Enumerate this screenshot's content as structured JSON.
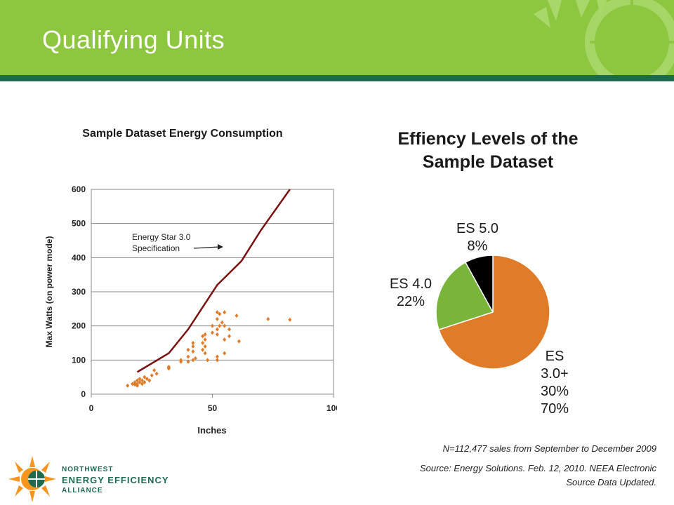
{
  "slide": {
    "title": "Qualifying Units"
  },
  "colors": {
    "header_green": "#8dc63f",
    "header_stripe": "#1d6b4f",
    "scatter_points": "#e07b28",
    "spec_line": "#7b1010",
    "pie_es3": "#e07b28",
    "pie_es4": "#79b43b",
    "pie_es5": "#000000"
  },
  "chart_data": [
    {
      "type": "scatter",
      "title": "Sample Dataset Energy Consumption",
      "xlabel": "Inches",
      "ylabel": "Max Watts (on power mode)",
      "xlim": [
        0,
        100
      ],
      "ylim": [
        0,
        600
      ],
      "xticks": [
        "0",
        "50",
        "100"
      ],
      "yticks": [
        "0",
        "100",
        "200",
        "300",
        "400",
        "500",
        "600"
      ],
      "grid": true,
      "annotation": {
        "line1": "Energy Star 3.0",
        "line2": "Specification"
      },
      "series": [
        {
          "name": "Energy Star 3.0 Specification",
          "kind": "line",
          "x": [
            19,
            32,
            40,
            52,
            62,
            70,
            82
          ],
          "y": [
            65,
            120,
            190,
            320,
            390,
            480,
            600
          ]
        },
        {
          "kind": "scatter",
          "x": [
            15,
            17,
            18,
            18,
            19,
            19,
            19,
            20,
            20,
            21,
            21,
            22,
            22,
            23,
            24,
            25,
            26,
            27,
            32,
            32,
            32,
            37,
            37,
            40,
            40,
            40,
            42,
            42,
            42,
            42,
            43,
            46,
            46,
            46,
            47,
            47,
            47,
            47,
            48,
            50,
            50,
            52,
            52,
            52,
            52,
            52,
            52,
            53,
            53,
            54,
            55,
            55,
            55,
            55,
            57,
            57,
            60,
            61,
            73,
            82
          ],
          "y": [
            25,
            30,
            28,
            35,
            40,
            30,
            25,
            35,
            45,
            40,
            30,
            50,
            35,
            45,
            40,
            55,
            70,
            60,
            75,
            80,
            78,
            100,
            95,
            130,
            110,
            95,
            150,
            140,
            125,
            100,
            105,
            170,
            150,
            130,
            175,
            160,
            140,
            120,
            100,
            200,
            180,
            240,
            220,
            190,
            175,
            110,
            100,
            235,
            200,
            210,
            240,
            200,
            160,
            120,
            190,
            170,
            230,
            155,
            220,
            218
          ]
        }
      ]
    },
    {
      "type": "pie",
      "title": "Effiency Levels of the Sample Dataset",
      "slices": [
        {
          "name": "ES 3.0+",
          "value": 70,
          "label_extra": "30%",
          "percent_label": "70%"
        },
        {
          "name": "ES 4.0",
          "value": 22,
          "percent_label": "22%"
        },
        {
          "name": "ES 5.0",
          "value": 8,
          "percent_label": "8%"
        }
      ]
    }
  ],
  "footnotes": {
    "n": "N=112,477 sales from September to December 2009",
    "source_line1": "Source: Energy Solutions. Feb. 12, 2010. NEEA Electronic",
    "source_line2": "Source Data Updated."
  },
  "logo": {
    "line1": "NORTHWEST",
    "line2": "ENERGY EFFICIENCY",
    "line3": "ALLIANCE"
  }
}
